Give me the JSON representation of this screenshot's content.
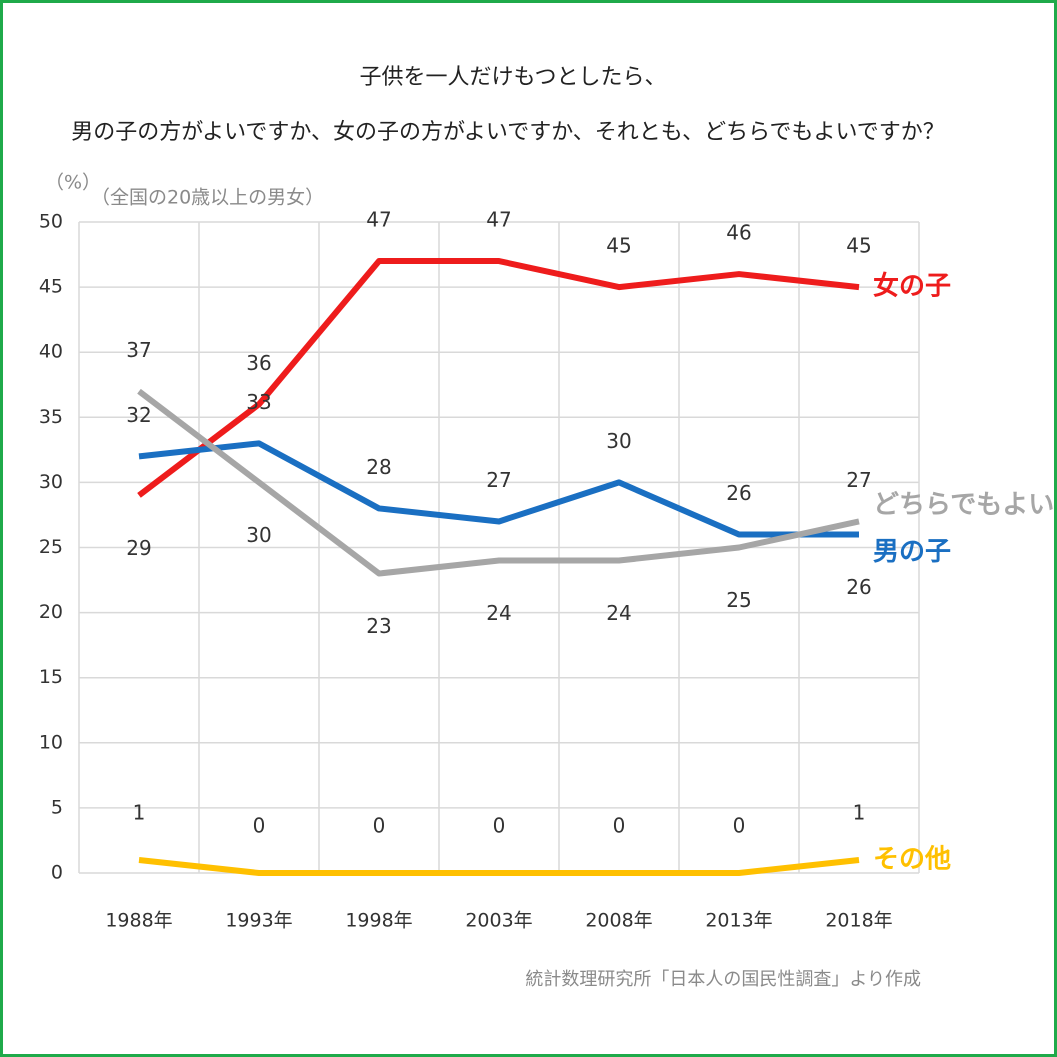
{
  "chart_data": {
    "type": "line",
    "title": "子供を一人だけもつとしたら、",
    "subtitle": "男の子の方がよいですか、女の子の方がよいですか、それとも、どちらでもよいですか？",
    "note": "（全国の20歳以上の男女）",
    "y_label": "（%）",
    "source": "統計数理研究所「日本人の国民性調査」より作成",
    "categories": [
      "1988年",
      "1993年",
      "1998年",
      "2003年",
      "2008年",
      "2013年",
      "2018年"
    ],
    "series": [
      {
        "name": "女の子",
        "color": "#ee1c1c",
        "values": [
          29,
          36,
          47,
          47,
          45,
          46,
          45
        ]
      },
      {
        "name": "男の子",
        "color": "#1a6fc2",
        "values": [
          32,
          33,
          28,
          27,
          30,
          26,
          26
        ]
      },
      {
        "name": "どちらでもよい",
        "color": "#a6a6a6",
        "values": [
          37,
          30,
          23,
          24,
          24,
          25,
          27
        ]
      },
      {
        "name": "その他",
        "color": "#ffc000",
        "values": [
          1,
          0,
          0,
          0,
          0,
          0,
          1
        ]
      }
    ],
    "ylim": [
      0,
      50
    ],
    "yticks": [
      0,
      5,
      10,
      15,
      20,
      25,
      30,
      35,
      40,
      45,
      50
    ],
    "grid": true
  }
}
